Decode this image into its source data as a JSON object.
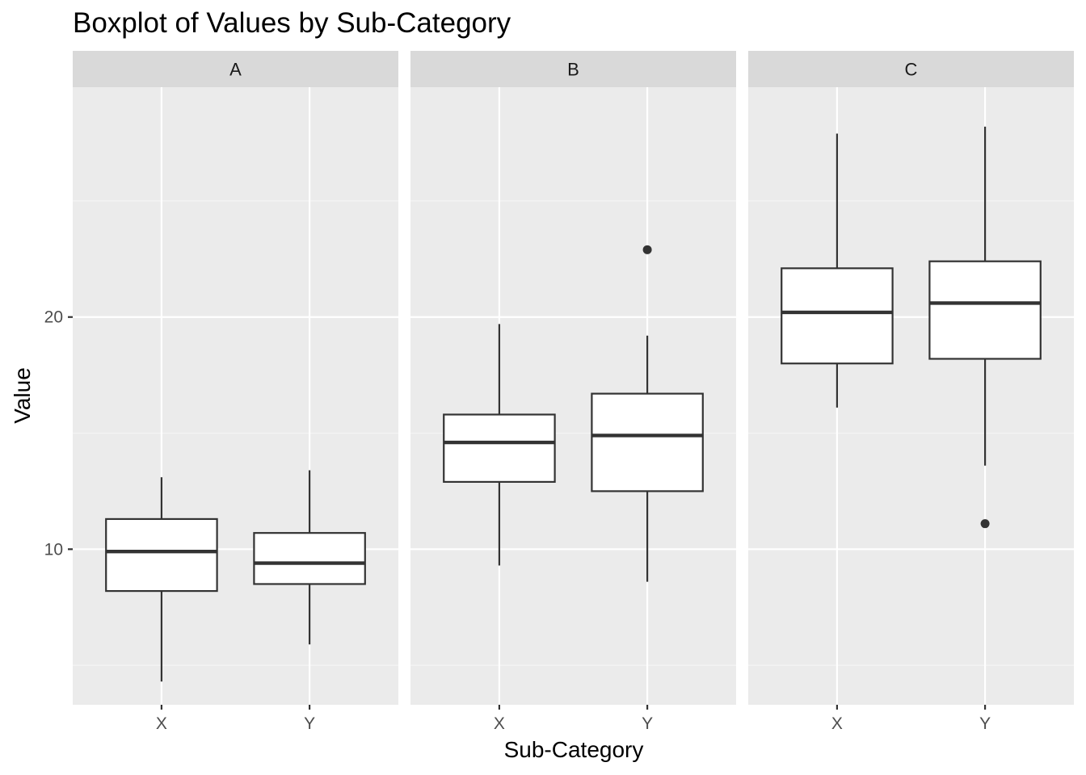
{
  "chart_data": {
    "type": "boxplot",
    "title": "Boxplot of Values by Sub-Category",
    "xlabel": "Sub-Category",
    "ylabel": "Value",
    "ylim": [
      3.3,
      29.9
    ],
    "y_ticks": [
      10,
      20
    ],
    "grid": true,
    "facets": [
      "A",
      "B",
      "C"
    ],
    "categories": [
      "X",
      "Y"
    ],
    "boxes": [
      {
        "facet": "A",
        "category": "X",
        "lower_whisker": 4.3,
        "q1": 8.2,
        "median": 9.9,
        "q3": 11.3,
        "upper_whisker": 13.1,
        "outliers": []
      },
      {
        "facet": "A",
        "category": "Y",
        "lower_whisker": 5.9,
        "q1": 8.5,
        "median": 9.4,
        "q3": 10.7,
        "upper_whisker": 13.4,
        "outliers": []
      },
      {
        "facet": "B",
        "category": "X",
        "lower_whisker": 9.3,
        "q1": 12.9,
        "median": 14.6,
        "q3": 15.8,
        "upper_whisker": 19.7,
        "outliers": []
      },
      {
        "facet": "B",
        "category": "Y",
        "lower_whisker": 8.6,
        "q1": 12.5,
        "median": 14.9,
        "q3": 16.7,
        "upper_whisker": 19.2,
        "outliers": [
          22.9
        ]
      },
      {
        "facet": "C",
        "category": "X",
        "lower_whisker": 16.1,
        "q1": 18.0,
        "median": 20.2,
        "q3": 22.1,
        "upper_whisker": 27.9,
        "outliers": []
      },
      {
        "facet": "C",
        "category": "Y",
        "lower_whisker": 13.6,
        "q1": 18.2,
        "median": 20.6,
        "q3": 22.4,
        "upper_whisker": 28.2,
        "outliers": [
          11.1
        ]
      }
    ],
    "colors": {
      "panel_background": "#ebebeb",
      "strip_background": "#d9d9d9",
      "grid_major": "#ffffff",
      "grid_minor": "#f5f5f5",
      "box_fill": "#ffffff",
      "box_line": "#333333",
      "tick_text": "#4d4d4d"
    }
  }
}
